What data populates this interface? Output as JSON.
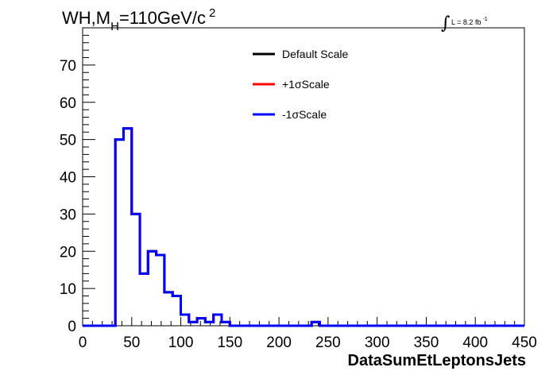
{
  "chart_data": {
    "type": "line",
    "title_parts": {
      "main": "WH,M",
      "sub": "H",
      "rest": "=110GeV/c",
      "sup": "2"
    },
    "lumi_parts": {
      "integral": "∫",
      "text": "L = 8.2 fb",
      "sup": "-1"
    },
    "xlabel": "DataSumEtLeptonsJets",
    "ylabel": "",
    "xlim": [
      0,
      450
    ],
    "ylim": [
      0,
      80
    ],
    "x_ticks": [
      "0",
      "50",
      "100",
      "150",
      "200",
      "250",
      "300",
      "350",
      "400",
      "450"
    ],
    "y_ticks": [
      "0",
      "10",
      "20",
      "30",
      "40",
      "50",
      "60",
      "70"
    ],
    "grid": false,
    "legend_placement": "top-center",
    "bin_width": 8.33,
    "bin_edges_start": 0,
    "series": [
      {
        "name": "Default Scale",
        "color": "#000000",
        "values": [
          0,
          0,
          0,
          0,
          50,
          53,
          30,
          14,
          20,
          19,
          9,
          8,
          3,
          1,
          2,
          1,
          3,
          1,
          0,
          0,
          0,
          0,
          0,
          0,
          0,
          0,
          0,
          0,
          1,
          0,
          0,
          0,
          0,
          0,
          0,
          0,
          0,
          0,
          0,
          0,
          0,
          0,
          0,
          0,
          0,
          0,
          0,
          0,
          0,
          0,
          0,
          0,
          0,
          0
        ]
      },
      {
        "name": "+1σScale",
        "color": "#ff0000",
        "values": [
          0,
          0,
          0,
          0,
          50,
          53,
          30,
          14,
          20,
          19,
          9,
          8,
          3,
          1,
          2,
          1,
          3,
          1,
          0,
          0,
          0,
          0,
          0,
          0,
          0,
          0,
          0,
          0,
          1,
          0,
          0,
          0,
          0,
          0,
          0,
          0,
          0,
          0,
          0,
          0,
          0,
          0,
          0,
          0,
          0,
          0,
          0,
          0,
          0,
          0,
          0,
          0,
          0,
          0
        ]
      },
      {
        "name": "-1σScale",
        "color": "#0000ff",
        "values": [
          0,
          0,
          0,
          0,
          50,
          53,
          30,
          14,
          20,
          19,
          9,
          8,
          3,
          1,
          2,
          1,
          3,
          1,
          0,
          0,
          0,
          0,
          0,
          0,
          0,
          0,
          0,
          0,
          1,
          0,
          0,
          0,
          0,
          0,
          0,
          0,
          0,
          0,
          0,
          0,
          0,
          0,
          0,
          0,
          0,
          0,
          0,
          0,
          0,
          0,
          0,
          0,
          0,
          0
        ]
      }
    ]
  }
}
